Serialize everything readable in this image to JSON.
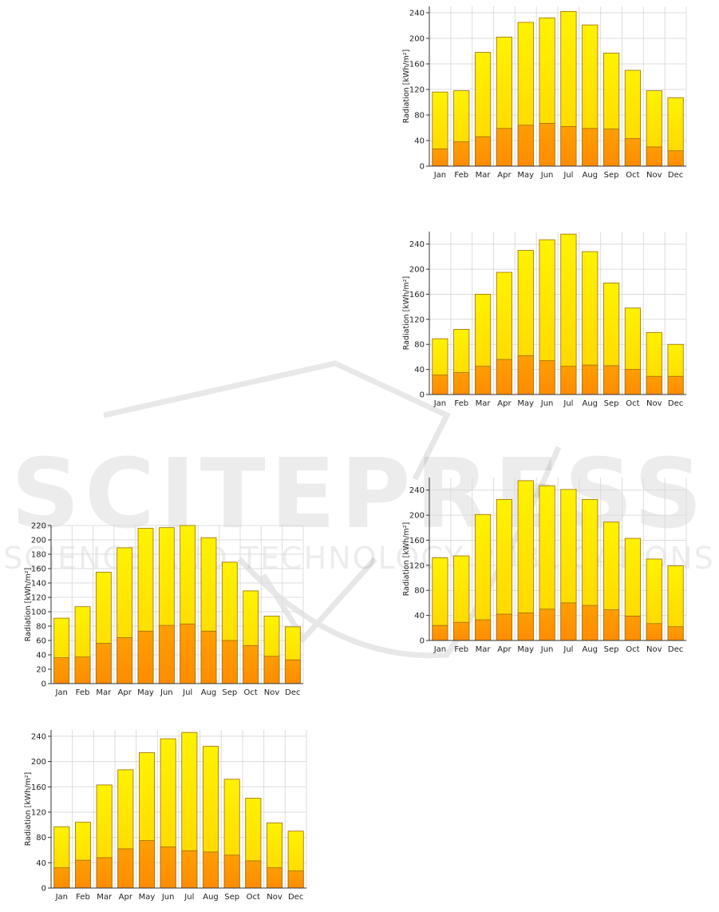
{
  "colors": {
    "bar_top": "#fff200",
    "bar_mid": "#ffd400",
    "bar_bottom": "#ff9e00",
    "bar_bottom_dark": "#ff8c00",
    "bar_stroke": "#a06a00",
    "grid": "#dcdcdc",
    "axis": "#333333"
  },
  "watermark": {
    "brand": "SCITEPRESS",
    "tagline": "SCIENCE AND TECHNOLOGY PUBLICATIONS"
  },
  "chart_data": [
    {
      "id": "top-right",
      "type": "bar",
      "ylabel": "Radiation [kWh/m²]",
      "categories": [
        "Jan",
        "Feb",
        "Mar",
        "Apr",
        "May",
        "Jun",
        "Jul",
        "Aug",
        "Sep",
        "Oct",
        "Nov",
        "Dec"
      ],
      "series": [
        {
          "values": [
            27,
            38,
            46,
            59,
            64,
            67,
            62,
            59,
            58,
            43,
            30,
            24
          ]
        },
        {
          "values": [
            116,
            118,
            178,
            202,
            225,
            232,
            242,
            221,
            177,
            150,
            118,
            107
          ]
        }
      ],
      "ylim": [
        0,
        250
      ],
      "yticks": [
        0,
        40,
        80,
        120,
        160,
        200,
        240
      ],
      "grid": true
    },
    {
      "id": "mid-right",
      "type": "bar",
      "ylabel": "Radiation [kWh/m²]",
      "categories": [
        "Jan",
        "Feb",
        "Mar",
        "Apr",
        "May",
        "Jun",
        "Jul",
        "Aug",
        "Sep",
        "Oct",
        "Nov",
        "Dec"
      ],
      "series": [
        {
          "values": [
            31,
            35,
            45,
            56,
            62,
            54,
            45,
            47,
            46,
            40,
            29,
            29
          ]
        },
        {
          "values": [
            89,
            104,
            160,
            195,
            230,
            247,
            256,
            228,
            178,
            138,
            99,
            80
          ]
        }
      ],
      "ylim": [
        0,
        260
      ],
      "yticks": [
        0,
        40,
        80,
        120,
        160,
        200,
        240
      ],
      "grid": true
    },
    {
      "id": "low-right",
      "type": "bar",
      "ylabel": "Radiation [kWh/m²]",
      "categories": [
        "Jan",
        "Feb",
        "Mar",
        "Apr",
        "May",
        "Jun",
        "Jul",
        "Aug",
        "Sep",
        "Oct",
        "Nov",
        "Dec"
      ],
      "series": [
        {
          "values": [
            24,
            29,
            33,
            42,
            44,
            50,
            60,
            56,
            49,
            39,
            27,
            22
          ]
        },
        {
          "values": [
            132,
            135,
            201,
            225,
            255,
            247,
            241,
            225,
            189,
            163,
            130,
            119
          ]
        }
      ],
      "ylim": [
        0,
        260
      ],
      "yticks": [
        0,
        40,
        80,
        120,
        160,
        200,
        240
      ],
      "grid": true
    },
    {
      "id": "left-1",
      "type": "bar",
      "ylabel": "Radiation [kWh/m²]",
      "categories": [
        "Jan",
        "Feb",
        "Mar",
        "Apr",
        "May",
        "Jun",
        "Jul",
        "Aug",
        "Sep",
        "Oct",
        "Nov",
        "Dec"
      ],
      "series": [
        {
          "values": [
            36,
            37,
            56,
            64,
            73,
            81,
            83,
            73,
            60,
            53,
            38,
            33
          ]
        },
        {
          "values": [
            91,
            107,
            155,
            189,
            216,
            217,
            220,
            203,
            169,
            129,
            94,
            79
          ]
        }
      ],
      "ylim": [
        0,
        220
      ],
      "yticks": [
        0,
        20,
        40,
        60,
        80,
        100,
        120,
        140,
        160,
        180,
        200,
        220
      ],
      "grid": true
    },
    {
      "id": "left-2",
      "type": "bar",
      "ylabel": "Radiation [kWh/m²]",
      "categories": [
        "Jan",
        "Feb",
        "Mar",
        "Apr",
        "May",
        "Jun",
        "Jul",
        "Aug",
        "Sep",
        "Oct",
        "Nov",
        "Dec"
      ],
      "series": [
        {
          "values": [
            32,
            44,
            48,
            62,
            75,
            65,
            59,
            57,
            52,
            43,
            32,
            27
          ]
        },
        {
          "values": [
            97,
            104,
            163,
            187,
            214,
            236,
            246,
            224,
            172,
            142,
            103,
            90
          ]
        }
      ],
      "ylim": [
        0,
        250
      ],
      "yticks": [
        0,
        40,
        80,
        120,
        160,
        200,
        240
      ],
      "grid": true
    }
  ]
}
